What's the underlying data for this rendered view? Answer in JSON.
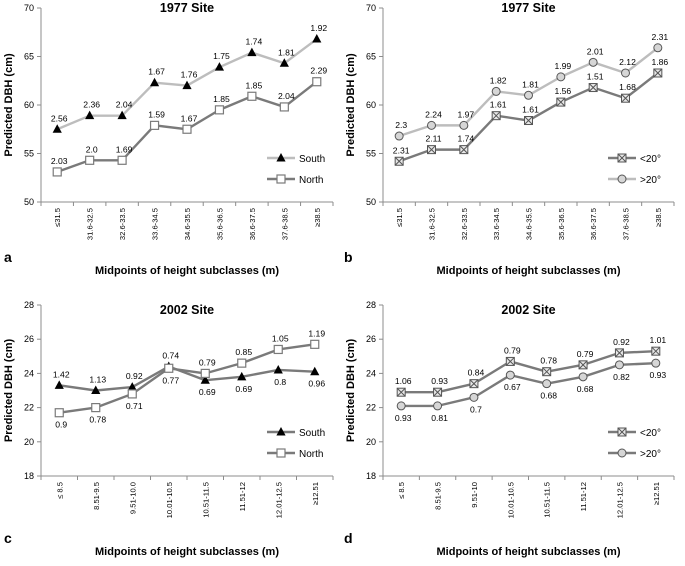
{
  "colors": {
    "dark": "#7a7a7a",
    "light": "#bdbdbd",
    "axis": "#8c8c8c",
    "text": "#000000"
  },
  "chart_data": [
    {
      "panel": "a",
      "type": "line",
      "title": "1977 Site",
      "xlabel": "Midpoints of height subclasses (m)",
      "ylabel": "Predicted DBH (cm)",
      "ylim": [
        50,
        70
      ],
      "yticks": [
        50,
        55,
        60,
        65,
        70
      ],
      "categories": [
        "≤31.5",
        "31.6-32.5",
        "32.6-33.5",
        "33.6-34.5",
        "34.6-35.5",
        "35.6-36.5",
        "36.6-37.5",
        "37.6-38.5",
        "≥38.5"
      ],
      "legend_position": "bottom-right",
      "series": [
        {
          "name": "South",
          "marker": "triangle",
          "color": "light",
          "values": [
            57.5,
            58.9,
            58.9,
            62.3,
            62.0,
            63.9,
            65.4,
            64.3,
            66.8
          ],
          "labels": [
            "2.56",
            "2.36",
            "2.04",
            "1.67",
            "1.76",
            "1.75",
            "1.74",
            "1.81",
            "1.92"
          ],
          "label_side": "above"
        },
        {
          "name": "North",
          "marker": "square",
          "color": "dark",
          "values": [
            53.1,
            54.3,
            54.3,
            57.9,
            57.5,
            59.5,
            60.9,
            59.8,
            62.4
          ],
          "labels": [
            "2.03",
            "2.0",
            "1.69",
            "1.59",
            "1.67",
            "1.85",
            "1.85",
            "2.04",
            "2.29"
          ],
          "label_side": "above"
        }
      ]
    },
    {
      "panel": "b",
      "type": "line",
      "title": "1977 Site",
      "xlabel": "Midpoints of height subclasses (m)",
      "ylabel": "Predicted DBH (cm)",
      "ylim": [
        50,
        70
      ],
      "yticks": [
        50,
        55,
        60,
        65,
        70
      ],
      "categories": [
        "≤31.5",
        "31.6-32.5",
        "32.6-33.5",
        "33.6-34.5",
        "34.6-35.5",
        "35.6-36.5",
        "36.6-37.5",
        "37.6-38.5",
        "≥38.5"
      ],
      "legend_position": "bottom-right",
      "series": [
        {
          "name": "<20°",
          "marker": "xsquare",
          "color": "dark",
          "values": [
            54.2,
            55.4,
            55.4,
            58.9,
            58.4,
            60.3,
            61.8,
            60.7,
            63.3
          ],
          "labels": [
            "2.31",
            "2.11",
            "1.74",
            "1.61",
            "1.61",
            "1.56",
            "1.51",
            "1.68",
            "1.86"
          ],
          "label_side": "above"
        },
        {
          "name": ">20°",
          "marker": "circle",
          "color": "light",
          "values": [
            56.8,
            57.9,
            57.9,
            61.4,
            61.0,
            62.9,
            64.4,
            63.3,
            65.9
          ],
          "labels": [
            "2.3",
            "2.24",
            "1.97",
            "1.82",
            "1.81",
            "1.99",
            "2.01",
            "2.12",
            "2.31"
          ],
          "label_side": "above"
        }
      ]
    },
    {
      "panel": "c",
      "type": "line",
      "title": "2002 Site",
      "xlabel": "Midpoints of height subclasses (m)",
      "ylabel": "Predicted DBH (cm)",
      "ylim": [
        18,
        28
      ],
      "yticks": [
        18,
        20,
        22,
        24,
        26,
        28
      ],
      "categories": [
        "≤ 8.5",
        "8.51-9.5",
        "9.51-10.0",
        "10.01-10.5",
        "10.51-11.5",
        "11.51-12",
        "12.01-12.5",
        "≥12.51"
      ],
      "legend_position": "bottom-right",
      "series": [
        {
          "name": "South",
          "marker": "triangle",
          "color": "dark",
          "values": [
            23.3,
            23.0,
            23.2,
            24.4,
            23.6,
            23.8,
            24.2,
            24.1
          ],
          "labels": [
            "1.42",
            "1.13",
            "0.92",
            "0.74",
            "0.69",
            "0.69",
            "0.8",
            "0.96"
          ],
          "label_side": [
            "above",
            "above",
            "above",
            "above",
            "below",
            "below",
            "below",
            "below"
          ]
        },
        {
          "name": "North",
          "marker": "square",
          "color": "dark",
          "values": [
            21.7,
            22.0,
            22.8,
            24.3,
            24.0,
            24.6,
            25.4,
            25.7
          ],
          "labels": [
            "0.9",
            "0.78",
            "0.71",
            "0.77",
            "0.79",
            "0.85",
            "1.05",
            "1.19"
          ],
          "label_side": [
            "below",
            "below",
            "below",
            "below",
            "above",
            "above",
            "above",
            "above"
          ]
        }
      ]
    },
    {
      "panel": "d",
      "type": "line",
      "title": "2002 Site",
      "xlabel": "Midpoints of height subclasses (m)",
      "ylabel": "Predicted DBH (cm)",
      "ylim": [
        18,
        28
      ],
      "yticks": [
        18,
        20,
        22,
        24,
        26,
        28
      ],
      "categories": [
        "≤ 8.5",
        "8.51-9.5",
        "9.51-10",
        "10.01-10.5",
        "10.51-11.5",
        "11.51-12",
        "12.01-12.5",
        "≥12.51"
      ],
      "legend_position": "bottom-right",
      "series": [
        {
          "name": "<20°",
          "marker": "xsquare",
          "color": "dark",
          "values": [
            22.9,
            22.9,
            23.4,
            24.7,
            24.1,
            24.5,
            25.2,
            25.3
          ],
          "labels": [
            "1.06",
            "0.93",
            "0.84",
            "0.79",
            "0.78",
            "0.79",
            "0.92",
            "1.01"
          ],
          "label_side": "above"
        },
        {
          "name": ">20°",
          "marker": "circle",
          "color": "dark",
          "values": [
            22.1,
            22.1,
            22.6,
            23.9,
            23.4,
            23.8,
            24.5,
            24.6
          ],
          "labels": [
            "0.93",
            "0.81",
            "0.7",
            "0.67",
            "0.68",
            "0.68",
            "0.82",
            "0.93"
          ],
          "label_side": "below"
        }
      ]
    }
  ]
}
